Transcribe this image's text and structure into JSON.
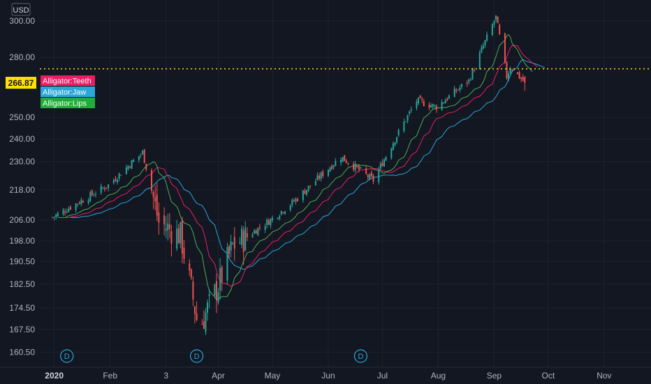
{
  "chart_data": {
    "type": "candlestick",
    "currency": "USD",
    "last_price_label": "266.87",
    "y_scale": "log",
    "ylim": [
      156,
      312
    ],
    "y_ticks": [
      "160.50",
      "167.50",
      "174.50",
      "182.50",
      "190.50",
      "198.00",
      "206.00",
      "218.00",
      "230.00",
      "240.00",
      "250.00",
      "266.87",
      "280.00",
      "300.00"
    ],
    "x_ticks": [
      {
        "label": "2020",
        "date": "2020-01-01",
        "bold": true
      },
      {
        "label": "Feb",
        "date": "2020-02-01"
      },
      {
        "label": "3",
        "date": "2020-03-03"
      },
      {
        "label": "Apr",
        "date": "2020-04-01"
      },
      {
        "label": "May",
        "date": "2020-05-01"
      },
      {
        "label": "Jun",
        "date": "2020-06-01"
      },
      {
        "label": "Jul",
        "date": "2020-07-01"
      },
      {
        "label": "Aug",
        "date": "2020-08-01"
      },
      {
        "label": "Sep",
        "date": "2020-09-01"
      },
      {
        "label": "Oct",
        "date": "2020-10-01"
      },
      {
        "label": "Nov",
        "date": "2020-11-01"
      }
    ],
    "x_range": [
      "2019-12-24",
      "2020-11-27"
    ],
    "indicator_labels": [
      {
        "name": "Alligator:Teeth",
        "color": "#e91e63"
      },
      {
        "name": "Alligator:Jaw",
        "color": "#2196f3"
      },
      {
        "name": "Alligator:Lips",
        "color": "#4caf50"
      }
    ],
    "events": [
      {
        "label": "D",
        "date": "2020-01-08"
      },
      {
        "label": "D",
        "date": "2020-03-20"
      },
      {
        "label": "D",
        "date": "2020-06-19"
      }
    ],
    "series_colors": {
      "up": "#26a69a",
      "down": "#ef5350",
      "jaw": "#2aa6d8",
      "teeth": "#e91e63",
      "lips": "#4caf50",
      "last_line": "#ffe000"
    },
    "close_anchors": [
      [
        "2019-12-31",
        207
      ],
      [
        "2020-01-17",
        214
      ],
      [
        "2020-01-31",
        220
      ],
      [
        "2020-02-19",
        234
      ],
      [
        "2020-02-28",
        205
      ],
      [
        "2020-03-11",
        200
      ],
      [
        "2020-03-20",
        171
      ],
      [
        "2020-03-23",
        170
      ],
      [
        "2020-04-01",
        182
      ],
      [
        "2020-04-09",
        196
      ],
      [
        "2020-04-30",
        206
      ],
      [
        "2020-05-14",
        214
      ],
      [
        "2020-06-08",
        232
      ],
      [
        "2020-06-26",
        222
      ],
      [
        "2020-07-20",
        258
      ],
      [
        "2020-07-31",
        255
      ],
      [
        "2020-08-18",
        268
      ],
      [
        "2020-09-02",
        302
      ],
      [
        "2020-09-08",
        270
      ],
      [
        "2020-09-10",
        275
      ],
      [
        "2020-09-18",
        266.87
      ]
    ]
  }
}
